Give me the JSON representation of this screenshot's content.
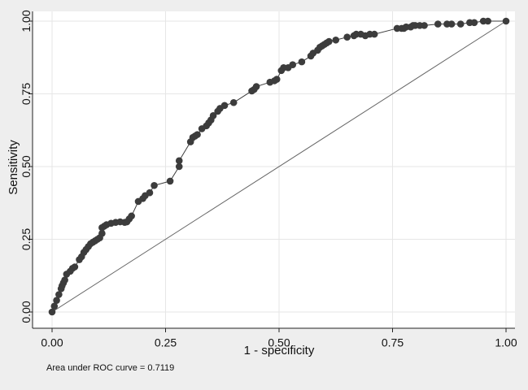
{
  "chart_data": {
    "type": "line",
    "xlabel": "1 - specificity",
    "ylabel": "Sensitivity",
    "xlim": [
      0,
      1
    ],
    "ylim": [
      0,
      1
    ],
    "xticks": [
      "0.00",
      "0.25",
      "0.50",
      "0.75",
      "1.00"
    ],
    "yticks": [
      "0.00",
      "0.25",
      "0.50",
      "0.75",
      "1.00"
    ],
    "grid": true,
    "note": "Area under ROC curve = 0.7119",
    "colors": {
      "background": "#eeeeee",
      "plot_area": "#ffffff",
      "grid": "#e6e6e6",
      "marker": "#3c3c3c",
      "curve": "#3c3c3c",
      "reference_line": "#666666"
    },
    "series": [
      {
        "type": "reference",
        "x": [
          0,
          1
        ],
        "y": [
          0,
          1
        ]
      },
      {
        "type": "roc",
        "x": [
          0.0,
          0.005,
          0.01,
          0.015,
          0.02,
          0.022,
          0.025,
          0.028,
          0.032,
          0.04,
          0.045,
          0.05,
          0.06,
          0.065,
          0.07,
          0.075,
          0.08,
          0.085,
          0.09,
          0.095,
          0.1,
          0.105,
          0.11,
          0.11,
          0.115,
          0.12,
          0.13,
          0.14,
          0.15,
          0.16,
          0.165,
          0.17,
          0.175,
          0.19,
          0.2,
          0.205,
          0.215,
          0.225,
          0.26,
          0.28,
          0.28,
          0.305,
          0.31,
          0.315,
          0.32,
          0.33,
          0.34,
          0.345,
          0.35,
          0.355,
          0.365,
          0.37,
          0.38,
          0.4,
          0.44,
          0.445,
          0.45,
          0.48,
          0.49,
          0.495,
          0.505,
          0.51,
          0.52,
          0.53,
          0.55,
          0.57,
          0.575,
          0.585,
          0.59,
          0.595,
          0.6,
          0.605,
          0.61,
          0.625,
          0.65,
          0.665,
          0.67,
          0.68,
          0.69,
          0.7,
          0.71,
          0.76,
          0.77,
          0.775,
          0.78,
          0.79,
          0.795,
          0.8,
          0.81,
          0.82,
          0.85,
          0.87,
          0.88,
          0.9,
          0.92,
          0.93,
          0.95,
          0.96,
          1.0
        ],
        "y": [
          0.0,
          0.02,
          0.04,
          0.06,
          0.08,
          0.09,
          0.1,
          0.11,
          0.13,
          0.14,
          0.15,
          0.155,
          0.18,
          0.19,
          0.205,
          0.215,
          0.225,
          0.235,
          0.24,
          0.245,
          0.25,
          0.255,
          0.27,
          0.29,
          0.295,
          0.3,
          0.305,
          0.308,
          0.31,
          0.308,
          0.31,
          0.32,
          0.33,
          0.38,
          0.39,
          0.4,
          0.41,
          0.435,
          0.45,
          0.5,
          0.52,
          0.585,
          0.6,
          0.605,
          0.61,
          0.63,
          0.64,
          0.65,
          0.66,
          0.675,
          0.69,
          0.7,
          0.71,
          0.72,
          0.76,
          0.765,
          0.775,
          0.79,
          0.795,
          0.8,
          0.83,
          0.84,
          0.84,
          0.85,
          0.86,
          0.88,
          0.89,
          0.9,
          0.91,
          0.915,
          0.92,
          0.925,
          0.93,
          0.935,
          0.945,
          0.95,
          0.955,
          0.955,
          0.95,
          0.955,
          0.955,
          0.975,
          0.975,
          0.975,
          0.98,
          0.98,
          0.985,
          0.985,
          0.985,
          0.985,
          0.99,
          0.99,
          0.99,
          0.99,
          0.995,
          0.995,
          1.0,
          1.0,
          1.0
        ]
      }
    ]
  }
}
